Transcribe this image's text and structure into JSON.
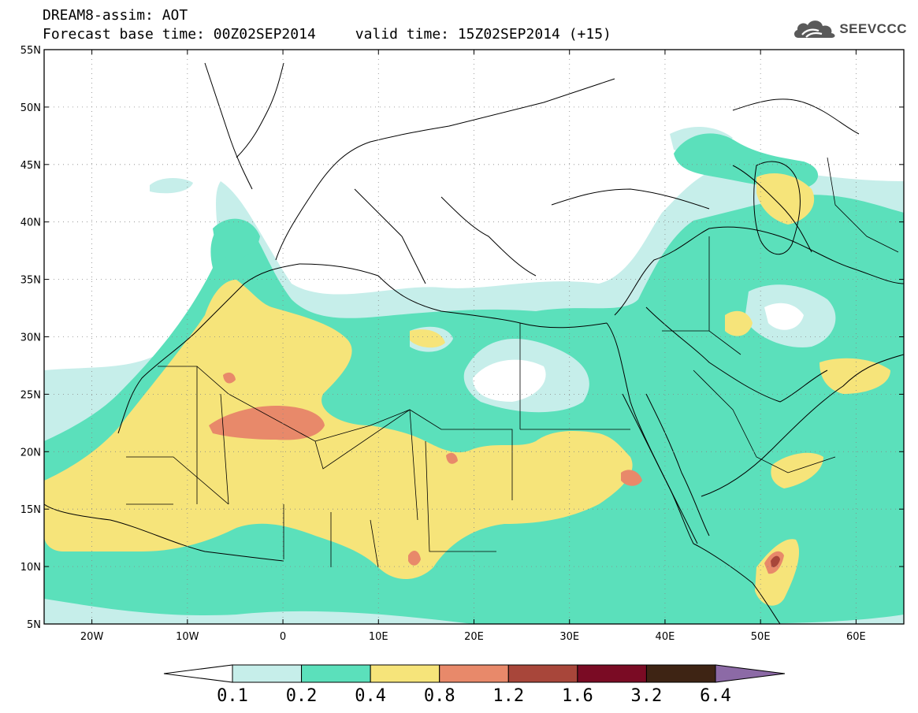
{
  "header": {
    "title": "DREAM8-assim: AOT",
    "base_time": "Forecast base time: 00Z02SEP2014",
    "valid_time": "valid time: 15Z02SEP2014 (+15)",
    "logo_text": "SEEVCCC",
    "logo_icon": "cloud-icon"
  },
  "map": {
    "projection": "lat-lon",
    "lon_range": [
      -25,
      65
    ],
    "lat_range": [
      5,
      55
    ],
    "lat_ticks": [
      {
        "value": 55,
        "label": "55N"
      },
      {
        "value": 50,
        "label": "50N"
      },
      {
        "value": 45,
        "label": "45N"
      },
      {
        "value": 40,
        "label": "40N"
      },
      {
        "value": 35,
        "label": "35N"
      },
      {
        "value": 30,
        "label": "30N"
      },
      {
        "value": 25,
        "label": "25N"
      },
      {
        "value": 20,
        "label": "20N"
      },
      {
        "value": 15,
        "label": "15N"
      },
      {
        "value": 10,
        "label": "10N"
      },
      {
        "value": 5,
        "label": "5N"
      }
    ],
    "lon_ticks": [
      {
        "value": -20,
        "label": "20W"
      },
      {
        "value": -10,
        "label": "10W"
      },
      {
        "value": 0,
        "label": "0"
      },
      {
        "value": 10,
        "label": "10E"
      },
      {
        "value": 20,
        "label": "20E"
      },
      {
        "value": 30,
        "label": "30E"
      },
      {
        "value": 40,
        "label": "40E"
      },
      {
        "value": 50,
        "label": "50E"
      },
      {
        "value": 60,
        "label": "60E"
      }
    ],
    "grid": "dotted",
    "colors": {
      "0.1-0.2": "#c6eeea",
      "0.2-0.4": "#5be0bb",
      "0.4-0.8": "#f6e47a",
      "0.8-1.2": "#e8896a",
      "1.2-1.6": "#a8463a",
      "1.6-3.2": "#7a0b24",
      "3.2-6.4": "#3e2414",
      ">6.4": "#8c6aa6",
      "land_no_dust": "#ffffff"
    }
  },
  "colorbar": {
    "labels": [
      "0.1",
      "0.2",
      "0.4",
      "0.8",
      "1.2",
      "1.6",
      "3.2",
      "6.4"
    ],
    "colors": [
      "#c6eeea",
      "#5be0bb",
      "#f6e47a",
      "#e8896a",
      "#a8463a",
      "#7a0b24",
      "#3e2414"
    ],
    "under_color": "#ffffff",
    "over_color": "#8c6aa6"
  }
}
